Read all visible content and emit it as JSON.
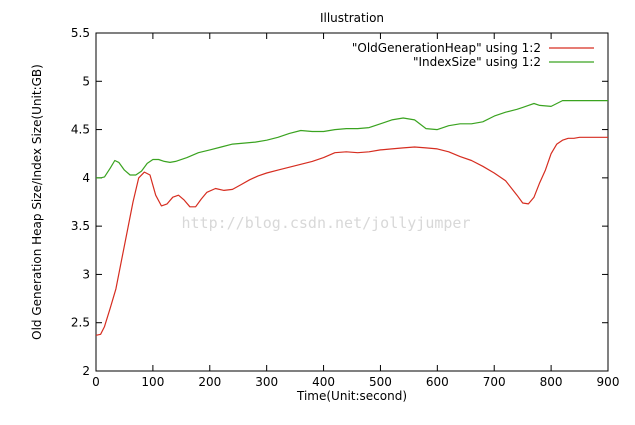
{
  "chart_data": {
    "type": "line",
    "title": "Illustration",
    "xlabel": "Time(Unit:second)",
    "ylabel": "Old Generation Heap  Size/Index  Size(Unit:GB)",
    "xlim": [
      0,
      900
    ],
    "ylim": [
      2,
      5.5
    ],
    "xticks": [
      0,
      100,
      200,
      300,
      400,
      500,
      600,
      700,
      800,
      900
    ],
    "yticks": [
      2,
      2.5,
      3,
      3.5,
      4,
      4.5,
      5,
      5.5
    ],
    "grid": false,
    "legend_position": "top-right",
    "watermark": "http://blog.csdn.net/jollyjumper",
    "series": [
      {
        "name": "\"OldGenerationHeap\" using 1:2",
        "color": "#d62d20",
        "x": [
          0,
          8,
          15,
          25,
          35,
          45,
          55,
          65,
          75,
          85,
          95,
          105,
          115,
          125,
          135,
          145,
          155,
          165,
          175,
          185,
          195,
          210,
          225,
          240,
          255,
          270,
          285,
          300,
          320,
          340,
          360,
          380,
          400,
          420,
          440,
          460,
          480,
          500,
          520,
          540,
          560,
          580,
          600,
          620,
          640,
          660,
          680,
          700,
          720,
          740,
          750,
          760,
          770,
          780,
          790,
          800,
          810,
          820,
          830,
          840,
          850,
          870,
          900
        ],
        "y": [
          2.37,
          2.38,
          2.46,
          2.65,
          2.85,
          3.15,
          3.45,
          3.75,
          4.0,
          4.06,
          4.03,
          3.82,
          3.71,
          3.73,
          3.8,
          3.82,
          3.77,
          3.7,
          3.7,
          3.78,
          3.85,
          3.89,
          3.87,
          3.88,
          3.93,
          3.98,
          4.02,
          4.05,
          4.08,
          4.11,
          4.14,
          4.17,
          4.21,
          4.26,
          4.27,
          4.26,
          4.27,
          4.29,
          4.3,
          4.31,
          4.32,
          4.31,
          4.3,
          4.27,
          4.22,
          4.18,
          4.12,
          4.05,
          3.97,
          3.82,
          3.74,
          3.73,
          3.8,
          3.95,
          4.08,
          4.25,
          4.35,
          4.39,
          4.41,
          4.41,
          4.42,
          4.42,
          4.42
        ]
      },
      {
        "name": "\"IndexSize\" using 1:2",
        "color": "#3aa320",
        "x": [
          0,
          8,
          15,
          25,
          33,
          40,
          50,
          60,
          70,
          80,
          90,
          100,
          110,
          120,
          130,
          140,
          160,
          180,
          200,
          220,
          240,
          260,
          280,
          300,
          320,
          340,
          360,
          380,
          400,
          420,
          440,
          460,
          480,
          500,
          520,
          540,
          560,
          580,
          600,
          620,
          640,
          660,
          680,
          700,
          720,
          740,
          750,
          760,
          770,
          780,
          800,
          820,
          860,
          900
        ],
        "y": [
          4.0,
          4.0,
          4.01,
          4.1,
          4.18,
          4.16,
          4.08,
          4.03,
          4.03,
          4.07,
          4.15,
          4.19,
          4.19,
          4.17,
          4.16,
          4.17,
          4.21,
          4.26,
          4.29,
          4.32,
          4.35,
          4.36,
          4.37,
          4.39,
          4.42,
          4.46,
          4.49,
          4.48,
          4.48,
          4.5,
          4.51,
          4.51,
          4.52,
          4.56,
          4.6,
          4.62,
          4.6,
          4.51,
          4.5,
          4.54,
          4.56,
          4.56,
          4.58,
          4.64,
          4.68,
          4.71,
          4.73,
          4.75,
          4.77,
          4.75,
          4.74,
          4.8,
          4.8,
          4.8
        ]
      }
    ]
  }
}
